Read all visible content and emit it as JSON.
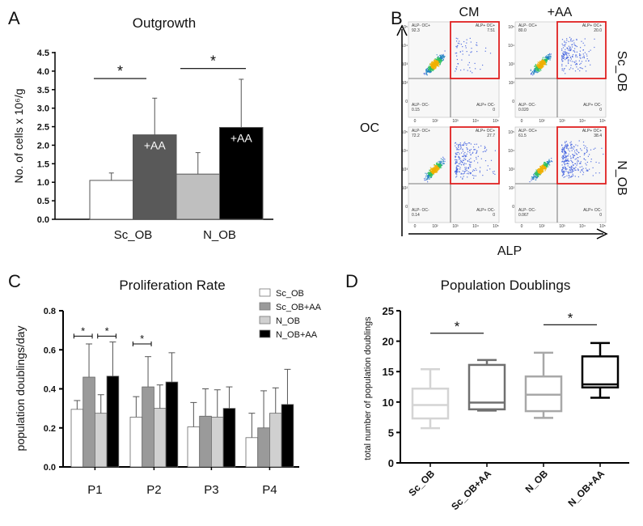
{
  "chart_data": [
    {
      "panel": "A",
      "type": "bar",
      "title": "Outgrowth",
      "ylabel": "No. of cells x 10⁶/g",
      "ylim": [
        0,
        4.5
      ],
      "yticks": [
        "0.0",
        "0.5",
        "1.0",
        "1.5",
        "2.0",
        "2.5",
        "3.0",
        "3.5",
        "4.0",
        "4.5"
      ],
      "categories": [
        "Sc_OB",
        "N_OB"
      ],
      "bars": [
        {
          "group": "Sc_OB",
          "label": "",
          "value": 1.05,
          "error": 0.2,
          "color": "#ffffff"
        },
        {
          "group": "Sc_OB",
          "label": "+AA",
          "value": 2.28,
          "error": 0.99,
          "color": "#595959"
        },
        {
          "group": "N_OB",
          "label": "",
          "value": 1.22,
          "error": 0.58,
          "color": "#bfbfbf"
        },
        {
          "group": "N_OB",
          "label": "+AA",
          "value": 2.48,
          "error": 1.3,
          "color": "#000000"
        }
      ],
      "significance": [
        {
          "from": 0,
          "to": 1,
          "level": 3.8,
          "mark": "*"
        },
        {
          "from": 2,
          "to": 3,
          "level": 4.07,
          "mark": "*"
        }
      ]
    },
    {
      "panel": "B",
      "type": "scatter",
      "xlabel": "ALP",
      "ylabel": "OC",
      "columns": [
        "CM",
        "+AA"
      ],
      "rows": [
        "Sc_OB",
        "N_OB"
      ],
      "axis_ticks": [
        "0",
        "10²",
        "10³",
        "10⁴",
        "10⁵"
      ],
      "quadrant_labels": {
        "ul": "ALP- OC+",
        "ur": "ALP+ OC+",
        "ll": "ALP- OC-",
        "lr": "ALP+ OC-"
      },
      "highlight_color": "#e02020",
      "plots": [
        {
          "row": "Sc_OB",
          "col": "CM",
          "ul": "92.3",
          "ur": "7.51",
          "ll": "0.15",
          "lr": "0"
        },
        {
          "row": "Sc_OB",
          "col": "+AA",
          "ul": "80.0",
          "ur": "20.0",
          "ll": "0.020",
          "lr": "0"
        },
        {
          "row": "N_OB",
          "col": "CM",
          "ul": "72.2",
          "ur": "27.7",
          "ll": "0.14",
          "lr": "0"
        },
        {
          "row": "N_OB",
          "col": "+AA",
          "ul": "61.5",
          "ur": "38.4",
          "ll": "0.067",
          "lr": "0"
        }
      ]
    },
    {
      "panel": "C",
      "type": "bar",
      "title": "Proliferation Rate",
      "ylabel": "population doublings/day",
      "ylim": [
        0,
        0.8
      ],
      "yticks": [
        "0.0",
        "0.2",
        "0.4",
        "0.6",
        "0.8"
      ],
      "categories": [
        "P1",
        "P2",
        "P3",
        "P4"
      ],
      "legend_position": "top-right",
      "series": [
        {
          "name": "Sc_OB",
          "color": "#ffffff",
          "values": [
            0.295,
            0.255,
            0.205,
            0.15
          ],
          "errors": [
            0.045,
            0.105,
            0.125,
            0.125
          ]
        },
        {
          "name": "Sc_OB+AA",
          "color": "#9a9a9a",
          "values": [
            0.46,
            0.41,
            0.26,
            0.2
          ],
          "errors": [
            0.17,
            0.155,
            0.14,
            0.19
          ]
        },
        {
          "name": "N_OB",
          "color": "#d0d0d0",
          "values": [
            0.275,
            0.3,
            0.255,
            0.275
          ],
          "errors": [
            0.095,
            0.12,
            0.14,
            0.13
          ]
        },
        {
          "name": "N_OB+AA",
          "color": "#000000",
          "values": [
            0.465,
            0.435,
            0.3,
            0.32
          ],
          "errors": [
            0.175,
            0.15,
            0.11,
            0.18
          ]
        }
      ],
      "significance": [
        {
          "category": 0,
          "from": 0,
          "to": 1,
          "level": 0.67,
          "mark": "*"
        },
        {
          "category": 0,
          "from": 2,
          "to": 3,
          "level": 0.67,
          "mark": "*"
        },
        {
          "category": 1,
          "from": 0,
          "to": 1,
          "level": 0.63,
          "mark": "*"
        }
      ]
    },
    {
      "panel": "D",
      "type": "box",
      "title": "Population Doublings",
      "ylabel": "total number of population doublings",
      "ylim": [
        0,
        25
      ],
      "yticks": [
        "0",
        "5",
        "10",
        "15",
        "20",
        "25"
      ],
      "categories": [
        "Sc_OB",
        "Sc_OB+AA",
        "N_OB",
        "N_OB+AA"
      ],
      "boxes": [
        {
          "min": 5.7,
          "q1": 7.3,
          "median": 9.5,
          "q3": 12.2,
          "max": 15.4,
          "color": "#d4d4d4"
        },
        {
          "min": 8.6,
          "q1": 8.8,
          "median": 9.9,
          "q3": 16.1,
          "max": 16.9,
          "color": "#707070"
        },
        {
          "min": 7.4,
          "q1": 8.5,
          "median": 11.2,
          "q3": 14.2,
          "max": 18.1,
          "color": "#a8a8a8"
        },
        {
          "min": 10.7,
          "q1": 12.4,
          "median": 12.9,
          "q3": 17.5,
          "max": 19.7,
          "color": "#000000"
        }
      ],
      "significance": [
        {
          "from": 0,
          "to": 1,
          "level": 21.3,
          "mark": "*"
        },
        {
          "from": 2,
          "to": 3,
          "level": 22.7,
          "mark": "*"
        }
      ]
    }
  ]
}
